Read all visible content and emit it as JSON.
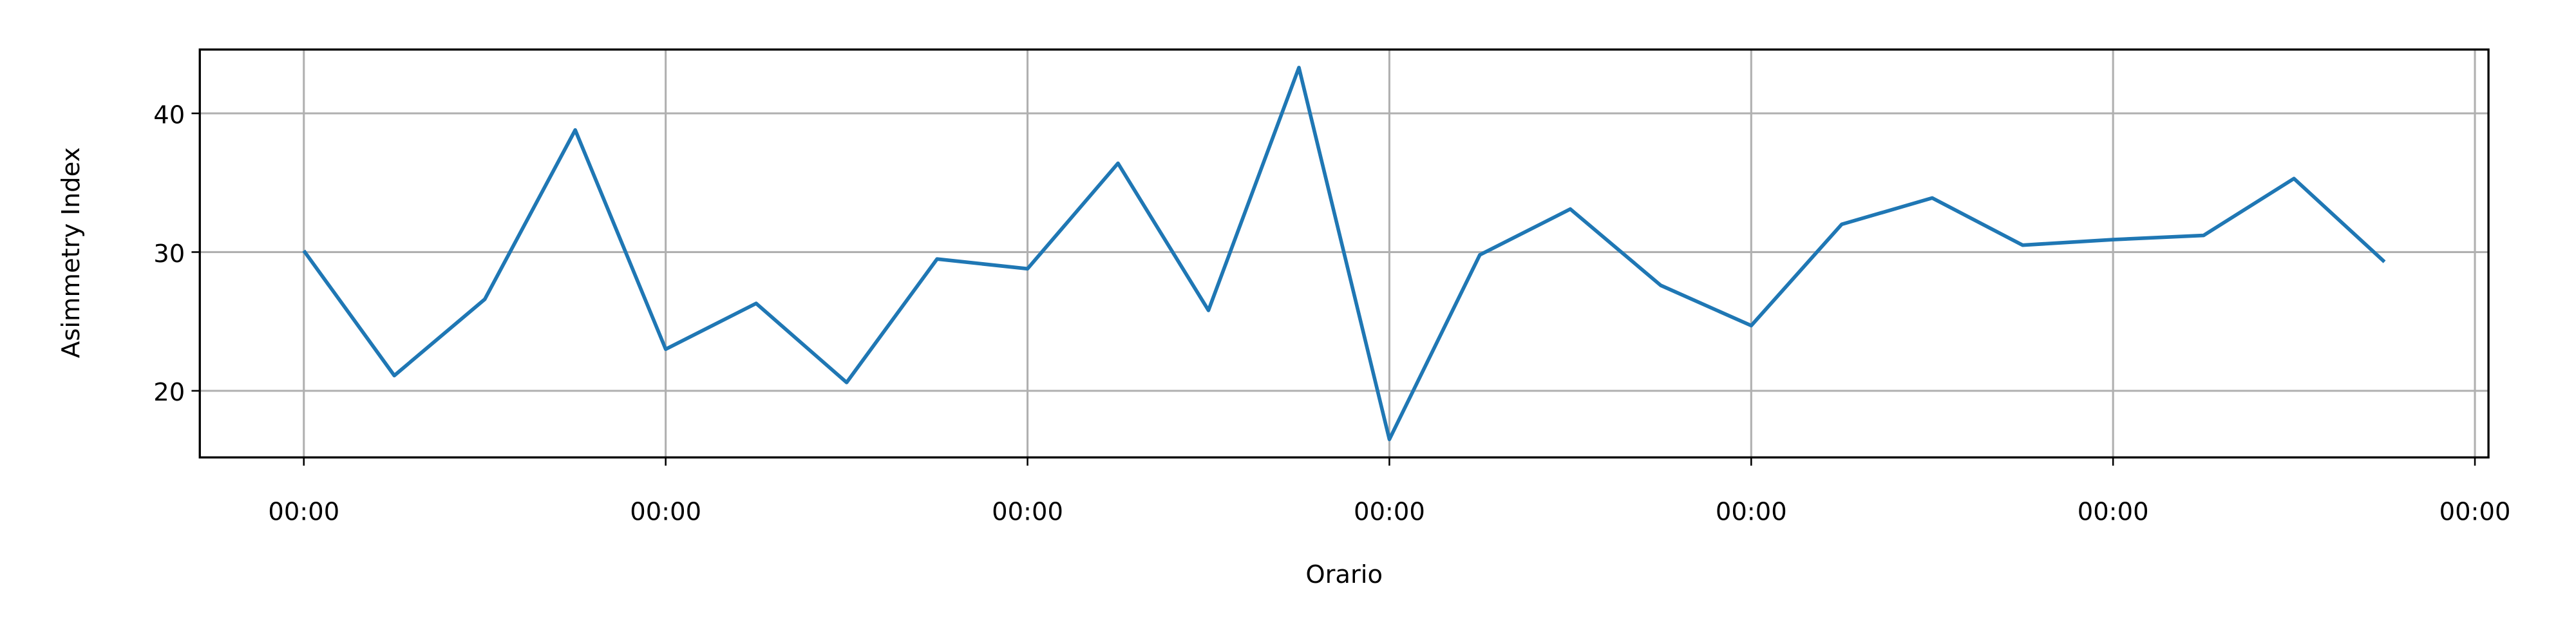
{
  "chart_data": {
    "type": "line",
    "xlabel": "Orario",
    "ylabel": "Asimmetry Index",
    "x": [
      0,
      6,
      12,
      18,
      24,
      30,
      36,
      42,
      48,
      54,
      60,
      66,
      72,
      78,
      84,
      90,
      96,
      102,
      108,
      114,
      120,
      126,
      132,
      138
    ],
    "series": [
      {
        "name": "Asimmetry Index",
        "color": "#1f77b4",
        "values": [
          30.1,
          21.1,
          26.6,
          38.8,
          23.0,
          26.3,
          20.6,
          29.5,
          28.8,
          36.4,
          25.8,
          43.3,
          16.5,
          29.8,
          33.1,
          27.6,
          24.7,
          32.0,
          33.9,
          30.5,
          30.9,
          31.2,
          35.3,
          29.3
        ]
      }
    ],
    "xlim": [
      -6.9,
      144.9
    ],
    "xticks": [
      {
        "value": 0,
        "label": "00:00"
      },
      {
        "value": 24,
        "label": "00:00"
      },
      {
        "value": 48,
        "label": "00:00"
      },
      {
        "value": 72,
        "label": "00:00"
      },
      {
        "value": 96,
        "label": "00:00"
      },
      {
        "value": 120,
        "label": "00:00"
      },
      {
        "value": 144,
        "label": "00:00"
      }
    ],
    "ylim": [
      15.2,
      44.6
    ],
    "yticks": [
      20,
      30,
      40
    ],
    "grid": true
  }
}
